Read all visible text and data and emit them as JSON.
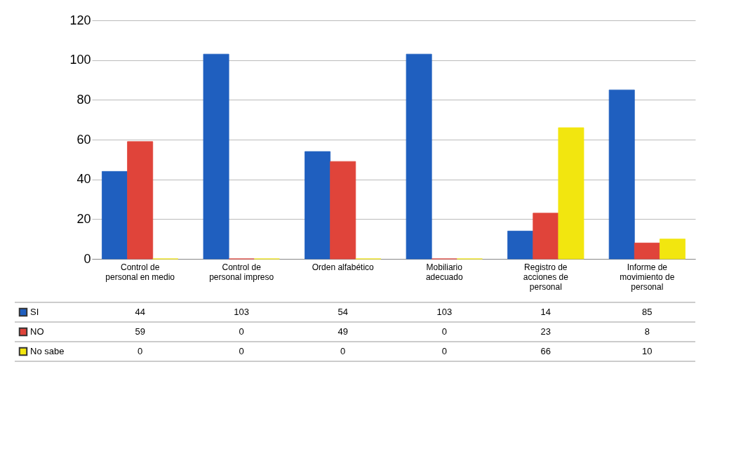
{
  "chart_data": {
    "type": "bar",
    "categories": [
      "Control de personal en medio",
      "Control de personal impreso",
      "Orden alfabético",
      "Mobiliario adecuado",
      "Registro de acciones de personal",
      "Informe de movimiento de personal"
    ],
    "series": [
      {
        "name": "SI",
        "color": "#1f5fbf",
        "values": [
          44,
          103,
          54,
          103,
          14,
          85
        ]
      },
      {
        "name": "NO",
        "color": "#e0443a",
        "values": [
          59,
          0,
          49,
          0,
          23,
          8
        ]
      },
      {
        "name": "No sabe",
        "color": "#f2e60f",
        "values": [
          0,
          0,
          0,
          0,
          66,
          10
        ]
      }
    ],
    "ylim": [
      0,
      120
    ],
    "yticks": [
      0,
      20,
      40,
      60,
      80,
      100,
      120
    ],
    "grid": "y",
    "data_labels": true,
    "legend": "bottom left"
  }
}
